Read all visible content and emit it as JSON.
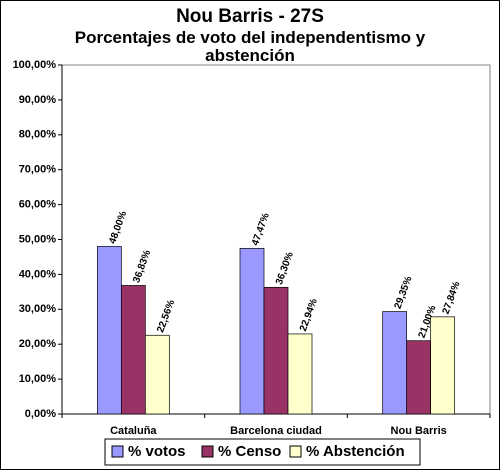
{
  "chart_data": {
    "type": "bar",
    "title": "Nou Barris - 27S",
    "subtitle": "Porcentajes de voto del independentismo y abstención",
    "categories": [
      "Cataluña",
      "Barcelona ciudad",
      "Nou Barris"
    ],
    "series": [
      {
        "name": "% votos",
        "color": "#9999ff",
        "values": [
          48.0,
          47.47,
          29.35
        ],
        "value_labels": [
          "48,00%",
          "47,47%",
          "29,35%"
        ]
      },
      {
        "name": "% Censo",
        "color": "#993366",
        "values": [
          36.83,
          36.3,
          21.0
        ],
        "value_labels": [
          "36,83%",
          "36,30%",
          "21,00%"
        ]
      },
      {
        "name": "% Abstención",
        "color": "#ffffcc",
        "values": [
          22.56,
          22.94,
          27.84
        ],
        "value_labels": [
          "22,56%",
          "22,94%",
          "27,84%"
        ]
      }
    ],
    "ylim": [
      0,
      100
    ],
    "yticks": [
      {
        "value": 0,
        "label": "0,00%"
      },
      {
        "value": 10,
        "label": "10,00%"
      },
      {
        "value": 20,
        "label": "20,00%"
      },
      {
        "value": 30,
        "label": "30,00%"
      },
      {
        "value": 40,
        "label": "40,00%"
      },
      {
        "value": 50,
        "label": "50,00%"
      },
      {
        "value": 60,
        "label": "60,00%"
      },
      {
        "value": 70,
        "label": "70,00%"
      },
      {
        "value": 80,
        "label": "80,00%"
      },
      {
        "value": 90,
        "label": "90,00%"
      },
      {
        "value": 100,
        "label": "100,00%"
      }
    ],
    "grid": false,
    "legend": "bottom"
  }
}
